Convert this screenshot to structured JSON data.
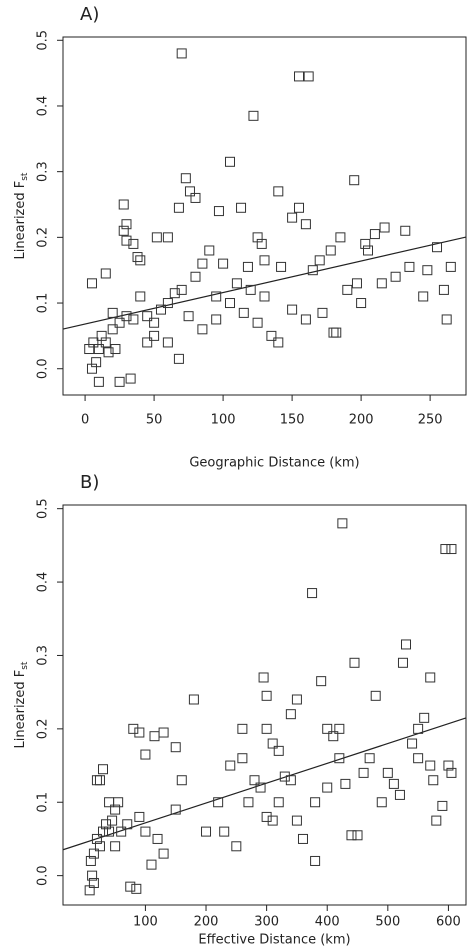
{
  "chart_data": [
    {
      "type": "scatter",
      "panel_label": "A)",
      "x_label": "Geographic Distance (km)",
      "y_label": {
        "text": "Linearized F",
        "subscript": "st"
      },
      "xlim": [
        -16,
        276
      ],
      "ylim": [
        -0.04,
        0.505
      ],
      "xticks": [
        0,
        50,
        100,
        150,
        200,
        250
      ],
      "yticks": [
        {
          "value": 0,
          "label": "0.0"
        },
        0.1,
        0.2,
        0.3,
        0.4,
        0.5
      ],
      "fit": {
        "intercept": 0.068,
        "slope": 0.00048
      },
      "color": "#333333",
      "x": [
        70,
        155,
        162,
        122,
        105,
        73,
        195,
        76,
        140,
        80,
        28,
        68,
        113,
        155,
        28,
        30,
        30,
        35,
        52,
        60,
        97,
        150,
        160,
        125,
        128,
        217,
        232,
        203,
        205,
        210,
        185,
        178,
        255,
        248,
        265,
        260,
        262,
        245,
        235,
        225,
        215,
        197,
        190,
        165,
        170,
        142,
        130,
        118,
        110,
        100,
        90,
        85,
        80,
        70,
        65,
        60,
        55,
        50,
        45,
        40,
        40,
        38,
        15,
        5,
        35,
        30,
        25,
        20,
        15,
        10,
        8,
        5,
        10,
        12,
        17,
        20,
        25,
        33,
        50,
        60,
        68,
        75,
        85,
        95,
        105,
        115,
        125,
        135,
        140,
        150,
        160,
        172,
        180,
        182,
        200,
        120,
        130,
        95,
        45,
        22,
        6,
        3
      ],
      "y": [
        0.48,
        0.445,
        0.445,
        0.385,
        0.315,
        0.29,
        0.287,
        0.27,
        0.27,
        0.26,
        0.25,
        0.245,
        0.245,
        0.245,
        0.21,
        0.22,
        0.195,
        0.19,
        0.2,
        0.2,
        0.24,
        0.23,
        0.22,
        0.2,
        0.19,
        0.215,
        0.21,
        0.19,
        0.18,
        0.205,
        0.2,
        0.18,
        0.185,
        0.15,
        0.155,
        0.12,
        0.075,
        0.11,
        0.155,
        0.14,
        0.13,
        0.13,
        0.12,
        0.15,
        0.165,
        0.155,
        0.165,
        0.155,
        0.13,
        0.16,
        0.18,
        0.16,
        0.14,
        0.12,
        0.115,
        0.1,
        0.09,
        0.07,
        0.08,
        0.11,
        0.165,
        0.17,
        0.145,
        0.13,
        0.075,
        0.08,
        0.07,
        0.06,
        0.04,
        0.03,
        0.01,
        0.0,
        -0.02,
        0.05,
        0.025,
        0.085,
        -0.02,
        -0.015,
        0.05,
        0.04,
        0.015,
        0.08,
        0.06,
        0.075,
        0.1,
        0.085,
        0.07,
        0.05,
        0.04,
        0.09,
        0.075,
        0.085,
        0.055,
        0.055,
        0.1,
        0.12,
        0.11,
        0.11,
        0.04,
        0.03,
        0.04,
        0.03
      ]
    },
    {
      "type": "scatter",
      "panel_label": "B)",
      "x_label": "Effective Distance (km)",
      "y_label": {
        "text": "Linearized F",
        "subscript": "st"
      },
      "xlim": [
        -36,
        629
      ],
      "ylim": [
        -0.04,
        0.505
      ],
      "xticks": [
        100,
        200,
        300,
        400,
        500,
        600
      ],
      "yticks": [
        {
          "value": 0,
          "label": "0.0"
        },
        0.1,
        0.2,
        0.3,
        0.4,
        0.5
      ],
      "fit": {
        "intercept": 0.045,
        "slope": 0.00027
      },
      "color": "#333333",
      "x": [
        425,
        595,
        605,
        375,
        530,
        525,
        445,
        295,
        570,
        300,
        390,
        180,
        350,
        480,
        80,
        90,
        115,
        130,
        150,
        100,
        20,
        25,
        30,
        40,
        50,
        45,
        35,
        40,
        20,
        15,
        10,
        12,
        8,
        15,
        75,
        85,
        25,
        55,
        110,
        130,
        100,
        120,
        150,
        160,
        200,
        220,
        240,
        260,
        280,
        290,
        300,
        310,
        320,
        330,
        340,
        310,
        320,
        350,
        360,
        380,
        400,
        410,
        420,
        430,
        440,
        450,
        460,
        470,
        500,
        510,
        520,
        540,
        550,
        560,
        570,
        575,
        580,
        590,
        600,
        605,
        550,
        490,
        400,
        380,
        250,
        230,
        270,
        60,
        30,
        50,
        70,
        90,
        300,
        340,
        420,
        260
      ],
      "y": [
        0.48,
        0.445,
        0.445,
        0.385,
        0.315,
        0.29,
        0.29,
        0.27,
        0.27,
        0.245,
        0.265,
        0.24,
        0.24,
        0.245,
        0.2,
        0.195,
        0.19,
        0.195,
        0.175,
        0.165,
        0.13,
        0.13,
        0.145,
        0.1,
        0.09,
        0.075,
        0.07,
        0.06,
        0.05,
        0.03,
        0.02,
        0.0,
        -0.02,
        -0.01,
        -0.015,
        -0.018,
        0.04,
        0.1,
        0.015,
        0.03,
        0.06,
        0.05,
        0.09,
        0.13,
        0.06,
        0.1,
        0.15,
        0.16,
        0.13,
        0.12,
        0.08,
        0.075,
        0.1,
        0.135,
        0.13,
        0.18,
        0.17,
        0.075,
        0.05,
        0.02,
        0.2,
        0.19,
        0.16,
        0.125,
        0.055,
        0.055,
        0.14,
        0.16,
        0.14,
        0.125,
        0.11,
        0.18,
        0.2,
        0.215,
        0.15,
        0.13,
        0.075,
        0.095,
        0.15,
        0.14,
        0.16,
        0.1,
        0.12,
        0.1,
        0.04,
        0.06,
        0.1,
        0.06,
        0.06,
        0.04,
        0.07,
        0.08,
        0.2,
        0.22,
        0.2,
        0.2
      ]
    }
  ]
}
